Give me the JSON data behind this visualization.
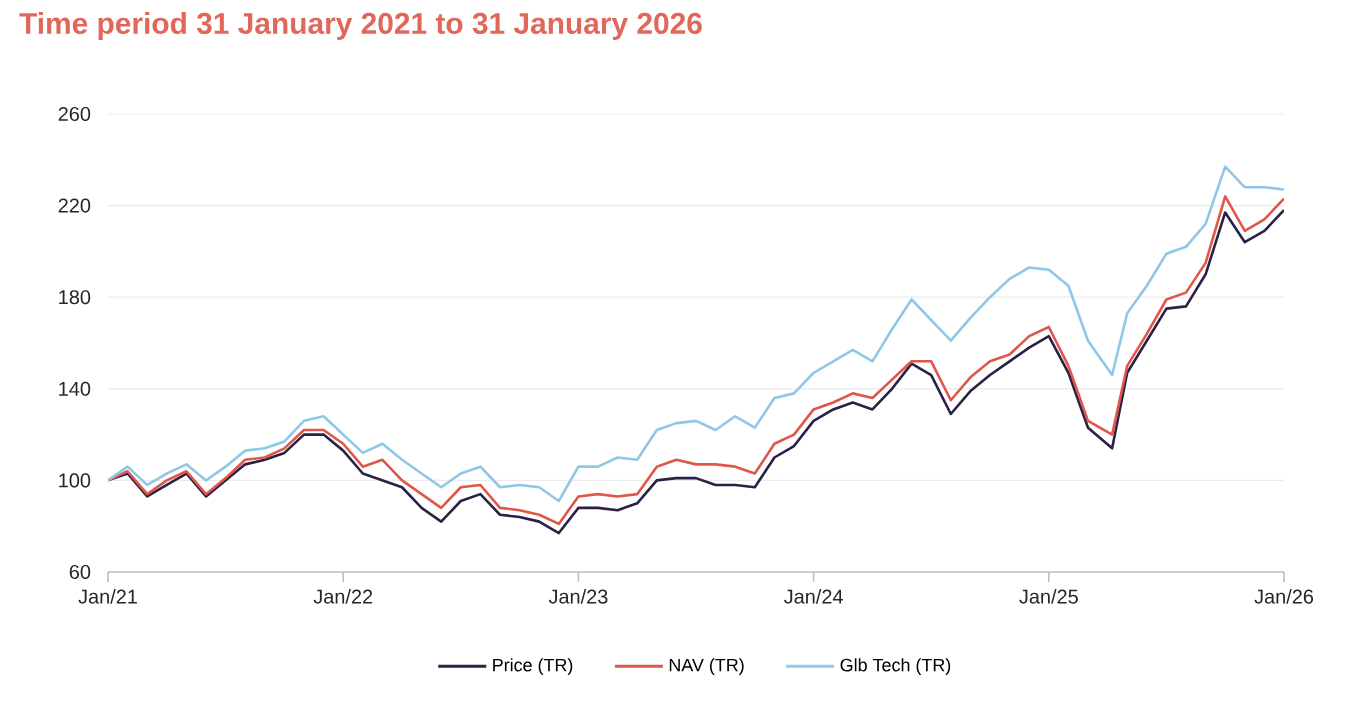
{
  "chart_data": {
    "type": "line",
    "title": "Time period 31 January 2021 to 31 January 2026",
    "x": [
      "2021-01-01",
      "2021-02-01",
      "2021-03-01",
      "2021-04-01",
      "2021-05-01",
      "2021-06-01",
      "2021-07-01",
      "2021-08-01",
      "2021-09-01",
      "2021-10-01",
      "2021-11-01",
      "2021-12-01",
      "2022-01-01",
      "2022-02-01",
      "2022-03-01",
      "2022-04-01",
      "2022-05-01",
      "2022-06-01",
      "2022-07-01",
      "2022-08-01",
      "2022-09-01",
      "2022-10-01",
      "2022-11-01",
      "2022-12-01",
      "2023-01-01",
      "2023-02-01",
      "2023-03-01",
      "2023-04-01",
      "2023-05-01",
      "2023-06-01",
      "2023-07-01",
      "2023-08-01",
      "2023-09-01",
      "2023-10-01",
      "2023-11-01",
      "2023-12-01",
      "2024-01-01",
      "2024-02-01",
      "2024-03-01",
      "2024-04-01",
      "2024-05-01",
      "2024-06-01",
      "2024-07-01",
      "2024-08-01",
      "2024-09-01",
      "2024-10-01",
      "2024-11-01",
      "2024-12-01",
      "2025-01-01",
      "2025-02-01",
      "2025-03-01",
      "2025-04-08",
      "2025-05-01",
      "2025-06-01",
      "2025-07-01",
      "2025-08-01",
      "2025-09-01",
      "2025-10-01",
      "2025-11-01",
      "2025-12-01",
      "2026-01-01"
    ],
    "series": [
      {
        "name": "Price (TR)",
        "color": "#2b2146",
        "values": [
          100,
          103,
          93,
          98,
          103,
          93,
          100,
          107,
          109,
          112,
          120,
          120,
          113,
          103,
          100,
          97,
          88,
          82,
          91,
          94,
          85,
          84,
          82,
          77,
          88,
          88,
          87,
          90,
          100,
          101,
          101,
          98,
          98,
          97,
          110,
          115,
          126,
          131,
          134,
          131,
          140,
          151,
          146,
          129,
          139,
          146,
          152,
          158,
          163,
          147,
          123,
          114,
          147,
          161,
          175,
          176,
          190,
          217,
          204,
          209,
          218
        ]
      },
      {
        "name": "NAV (TR)",
        "color": "#e0574a",
        "values": [
          100,
          104,
          94,
          100,
          104,
          94,
          101,
          109,
          110,
          114,
          122,
          122,
          116,
          106,
          109,
          100,
          94,
          88,
          97,
          98,
          88,
          87,
          85,
          81,
          93,
          94,
          93,
          94,
          106,
          109,
          107,
          107,
          106,
          103,
          116,
          120,
          131,
          134,
          138,
          136,
          144,
          152,
          152,
          135,
          145,
          152,
          155,
          163,
          167,
          150,
          126,
          120,
          150,
          164,
          179,
          182,
          195,
          224,
          209,
          214,
          223
        ]
      },
      {
        "name": "Glb Tech (TR)",
        "color": "#8ec8e6",
        "values": [
          100,
          106,
          98,
          103,
          107,
          100,
          106,
          113,
          114,
          117,
          126,
          128,
          120,
          112,
          116,
          109,
          103,
          97,
          103,
          106,
          97,
          98,
          97,
          91,
          106,
          106,
          110,
          109,
          122,
          125,
          126,
          122,
          128,
          123,
          136,
          138,
          147,
          152,
          157,
          152,
          166,
          179,
          170,
          161,
          171,
          180,
          188,
          193,
          192,
          185,
          161,
          146,
          173,
          185,
          199,
          202,
          212,
          237,
          228,
          228,
          227
        ]
      }
    ],
    "xlim": [
      "2021-01-01",
      "2026-01-01"
    ],
    "xticks": [
      {
        "value": "2021-01-01",
        "label": "Jan/21"
      },
      {
        "value": "2022-01-01",
        "label": "Jan/22"
      },
      {
        "value": "2023-01-01",
        "label": "Jan/23"
      },
      {
        "value": "2024-01-01",
        "label": "Jan/24"
      },
      {
        "value": "2025-01-01",
        "label": "Jan/25"
      },
      {
        "value": "2026-01-01",
        "label": "Jan/26"
      }
    ],
    "ylim": [
      60,
      260
    ],
    "yticks": [
      60,
      100,
      140,
      180,
      220,
      260
    ],
    "grid": "y",
    "legend": "bottom",
    "line_style": "solid"
  }
}
